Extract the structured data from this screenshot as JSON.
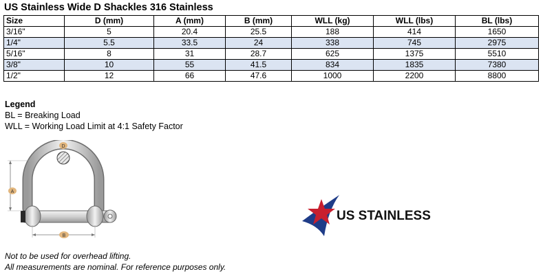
{
  "title": "US Stainless Wide D Shackles 316 Stainless",
  "table": {
    "headers": [
      "Size",
      "D (mm)",
      "A (mm)",
      "B (mm)",
      "WLL (kg)",
      "WLL (lbs)",
      "BL (lbs)"
    ],
    "rows": [
      [
        "3/16\"",
        "5",
        "20.4",
        "25.5",
        "188",
        "414",
        "1650"
      ],
      [
        "1/4\"",
        "5.5",
        "33.5",
        "24",
        "338",
        "745",
        "2975"
      ],
      [
        "5/16\"",
        "8",
        "31",
        "28.7",
        "625",
        "1375",
        "5510"
      ],
      [
        "3/8\"",
        "10",
        "55",
        "41.5",
        "834",
        "1835",
        "7380"
      ],
      [
        "1/2\"",
        "12",
        "66",
        "47.6",
        "1000",
        "2200",
        "8800"
      ]
    ],
    "shaded_row_color": "#dbe4f2"
  },
  "legend": {
    "heading": "Legend",
    "lines": [
      "BL = Breaking Load",
      "WLL = Working Load Limit at 4:1 Safety Factor"
    ]
  },
  "diagram": {
    "label_d": "D",
    "label_a": "A",
    "label_b": "B"
  },
  "logo": {
    "text": "US STAINLESS",
    "star_color": "#c8202f",
    "swoosh_color": "#1f3c88"
  },
  "notes": [
    "Not to be used for overhead lifting.",
    "All measurements are nominal. For reference purposes only."
  ]
}
